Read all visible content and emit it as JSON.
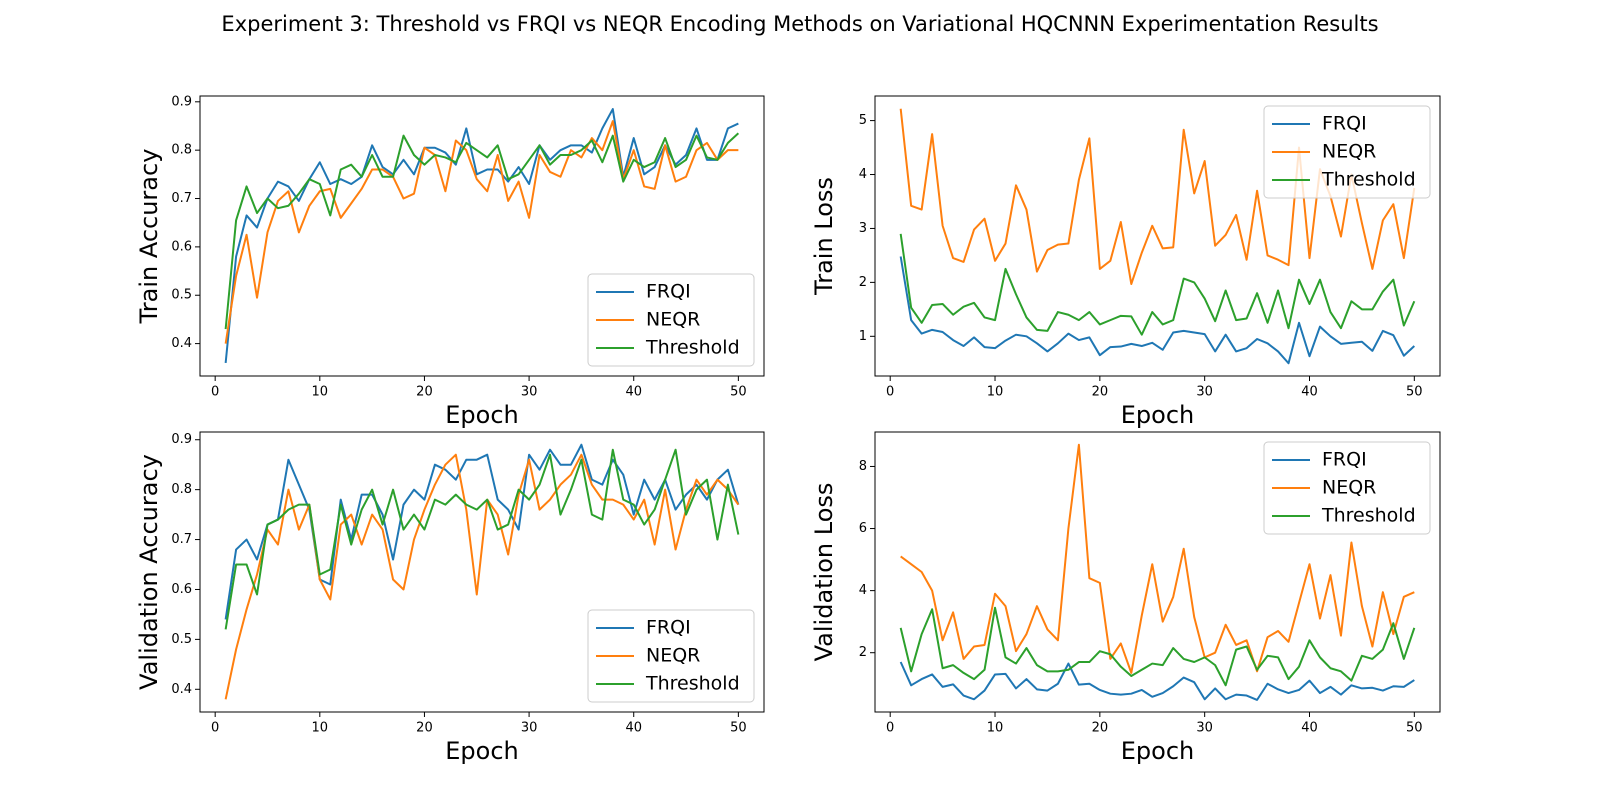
{
  "title": "Experiment 3: Threshold vs FRQI vs NEQR Encoding Methods on Variational HQCNNN Experimentation Results",
  "chart_data": [
    {
      "type": "line",
      "xlabel": "Epoch",
      "ylabel": "Train Accuracy",
      "legend": "lower right",
      "x": [
        1,
        2,
        3,
        4,
        5,
        6,
        7,
        8,
        9,
        10,
        11,
        12,
        13,
        14,
        15,
        16,
        17,
        18,
        19,
        20,
        21,
        22,
        23,
        24,
        25,
        26,
        27,
        28,
        29,
        30,
        31,
        32,
        33,
        34,
        35,
        36,
        37,
        38,
        39,
        40,
        41,
        42,
        43,
        44,
        45,
        46,
        47,
        48,
        49,
        50
      ],
      "xlim": [
        -1.45,
        52.45
      ],
      "xticks": [
        0,
        10,
        20,
        30,
        40,
        50
      ],
      "ylim": [
        0.333,
        0.912
      ],
      "yticks": [
        0.4,
        0.5,
        0.6,
        0.7,
        0.8,
        0.9
      ],
      "series": [
        {
          "name": "FRQI",
          "color": "#1f77b4",
          "values": [
            0.36,
            0.58,
            0.665,
            0.64,
            0.7,
            0.735,
            0.725,
            0.695,
            0.74,
            0.775,
            0.73,
            0.74,
            0.73,
            0.745,
            0.81,
            0.765,
            0.75,
            0.78,
            0.75,
            0.805,
            0.805,
            0.795,
            0.77,
            0.845,
            0.75,
            0.76,
            0.76,
            0.735,
            0.765,
            0.73,
            0.81,
            0.78,
            0.8,
            0.81,
            0.81,
            0.795,
            0.845,
            0.885,
            0.745,
            0.825,
            0.75,
            0.765,
            0.81,
            0.77,
            0.79,
            0.845,
            0.78,
            0.78,
            0.845,
            0.855
          ]
        },
        {
          "name": "NEQR",
          "color": "#ff7f0e",
          "values": [
            0.4,
            0.54,
            0.625,
            0.495,
            0.63,
            0.695,
            0.715,
            0.63,
            0.685,
            0.715,
            0.72,
            0.66,
            0.69,
            0.72,
            0.76,
            0.76,
            0.745,
            0.7,
            0.71,
            0.805,
            0.79,
            0.715,
            0.82,
            0.8,
            0.74,
            0.715,
            0.79,
            0.695,
            0.735,
            0.66,
            0.79,
            0.755,
            0.745,
            0.8,
            0.785,
            0.825,
            0.8,
            0.86,
            0.74,
            0.8,
            0.725,
            0.72,
            0.81,
            0.735,
            0.745,
            0.8,
            0.815,
            0.78,
            0.8,
            0.8
          ]
        },
        {
          "name": "Threshold",
          "color": "#2ca02c",
          "values": [
            0.43,
            0.655,
            0.725,
            0.67,
            0.7,
            0.68,
            0.685,
            0.71,
            0.74,
            0.73,
            0.665,
            0.76,
            0.77,
            0.745,
            0.79,
            0.745,
            0.745,
            0.83,
            0.79,
            0.77,
            0.79,
            0.785,
            0.775,
            0.815,
            0.8,
            0.785,
            0.81,
            0.74,
            0.75,
            0.78,
            0.81,
            0.77,
            0.79,
            0.79,
            0.8,
            0.82,
            0.775,
            0.83,
            0.735,
            0.78,
            0.765,
            0.775,
            0.825,
            0.765,
            0.78,
            0.83,
            0.785,
            0.78,
            0.815,
            0.835
          ]
        }
      ]
    },
    {
      "type": "line",
      "xlabel": "Epoch",
      "ylabel": "Train Loss",
      "legend": "upper right",
      "x": [
        1,
        2,
        3,
        4,
        5,
        6,
        7,
        8,
        9,
        10,
        11,
        12,
        13,
        14,
        15,
        16,
        17,
        18,
        19,
        20,
        21,
        22,
        23,
        24,
        25,
        26,
        27,
        28,
        29,
        30,
        31,
        32,
        33,
        34,
        35,
        36,
        37,
        38,
        39,
        40,
        41,
        42,
        43,
        44,
        45,
        46,
        47,
        48,
        49,
        50
      ],
      "xlim": [
        -1.45,
        52.45
      ],
      "xticks": [
        0,
        10,
        20,
        30,
        40,
        50
      ],
      "ylim": [
        0.264,
        5.456
      ],
      "yticks": [
        1,
        2,
        3,
        4,
        5
      ],
      "series": [
        {
          "name": "FRQI",
          "color": "#1f77b4",
          "values": [
            2.48,
            1.3,
            1.05,
            1.12,
            1.08,
            0.93,
            0.82,
            0.98,
            0.8,
            0.78,
            0.92,
            1.03,
            1.0,
            0.87,
            0.72,
            0.87,
            1.05,
            0.93,
            0.98,
            0.65,
            0.8,
            0.81,
            0.86,
            0.82,
            0.88,
            0.75,
            1.07,
            1.1,
            1.07,
            1.04,
            0.72,
            1.03,
            0.72,
            0.78,
            0.95,
            0.87,
            0.72,
            0.5,
            1.25,
            0.63,
            1.18,
            1.0,
            0.86,
            0.88,
            0.9,
            0.73,
            1.1,
            1.02,
            0.64,
            0.82
          ]
        },
        {
          "name": "NEQR",
          "color": "#ff7f0e",
          "values": [
            5.22,
            3.42,
            3.35,
            4.75,
            3.05,
            2.45,
            2.38,
            2.98,
            3.18,
            2.4,
            2.72,
            3.8,
            3.35,
            2.2,
            2.6,
            2.7,
            2.72,
            3.9,
            4.67,
            2.25,
            2.4,
            3.12,
            1.97,
            2.55,
            3.05,
            2.63,
            2.65,
            4.83,
            3.65,
            4.25,
            2.68,
            2.88,
            3.25,
            2.42,
            3.7,
            2.5,
            2.42,
            2.32,
            4.5,
            2.45,
            4.1,
            3.6,
            2.85,
            4.0,
            3.1,
            2.25,
            3.15,
            3.45,
            2.45,
            3.75
          ]
        },
        {
          "name": "Threshold",
          "color": "#2ca02c",
          "values": [
            2.9,
            1.53,
            1.25,
            1.58,
            1.6,
            1.4,
            1.55,
            1.62,
            1.35,
            1.3,
            2.25,
            1.78,
            1.35,
            1.12,
            1.1,
            1.45,
            1.4,
            1.3,
            1.45,
            1.22,
            1.3,
            1.38,
            1.37,
            1.03,
            1.45,
            1.22,
            1.3,
            2.07,
            2.0,
            1.7,
            1.28,
            1.85,
            1.3,
            1.33,
            1.8,
            1.25,
            1.85,
            1.15,
            2.05,
            1.6,
            2.05,
            1.45,
            1.15,
            1.65,
            1.5,
            1.5,
            1.83,
            2.05,
            1.2,
            1.65
          ]
        }
      ]
    },
    {
      "type": "line",
      "xlabel": "Epoch",
      "ylabel": "Validation Accuracy",
      "legend": "lower right",
      "x": [
        1,
        2,
        3,
        4,
        5,
        6,
        7,
        8,
        9,
        10,
        11,
        12,
        13,
        14,
        15,
        16,
        17,
        18,
        19,
        20,
        21,
        22,
        23,
        24,
        25,
        26,
        27,
        28,
        29,
        30,
        31,
        32,
        33,
        34,
        35,
        36,
        37,
        38,
        39,
        40,
        41,
        42,
        43,
        44,
        45,
        46,
        47,
        48,
        49,
        50
      ],
      "xlim": [
        -1.45,
        52.45
      ],
      "xticks": [
        0,
        10,
        20,
        30,
        40,
        50
      ],
      "ylim": [
        0.3545,
        0.9155
      ],
      "yticks": [
        0.4,
        0.5,
        0.6,
        0.7,
        0.8,
        0.9
      ],
      "series": [
        {
          "name": "FRQI",
          "color": "#1f77b4",
          "values": [
            0.54,
            0.68,
            0.7,
            0.66,
            0.73,
            0.74,
            0.86,
            0.81,
            0.76,
            0.62,
            0.61,
            0.78,
            0.7,
            0.79,
            0.79,
            0.75,
            0.66,
            0.77,
            0.8,
            0.78,
            0.85,
            0.84,
            0.82,
            0.86,
            0.86,
            0.87,
            0.78,
            0.76,
            0.72,
            0.87,
            0.84,
            0.88,
            0.85,
            0.85,
            0.89,
            0.82,
            0.81,
            0.86,
            0.83,
            0.75,
            0.82,
            0.78,
            0.82,
            0.76,
            0.79,
            0.81,
            0.78,
            0.82,
            0.84,
            0.77
          ]
        },
        {
          "name": "NEQR",
          "color": "#ff7f0e",
          "values": [
            0.38,
            0.48,
            0.56,
            0.63,
            0.72,
            0.69,
            0.8,
            0.72,
            0.77,
            0.62,
            0.58,
            0.73,
            0.75,
            0.69,
            0.75,
            0.72,
            0.62,
            0.6,
            0.7,
            0.76,
            0.81,
            0.85,
            0.87,
            0.76,
            0.59,
            0.78,
            0.75,
            0.67,
            0.79,
            0.86,
            0.76,
            0.78,
            0.81,
            0.83,
            0.87,
            0.81,
            0.78,
            0.78,
            0.77,
            0.74,
            0.78,
            0.69,
            0.8,
            0.68,
            0.76,
            0.82,
            0.79,
            0.82,
            0.8,
            0.77
          ]
        },
        {
          "name": "Threshold",
          "color": "#2ca02c",
          "values": [
            0.52,
            0.65,
            0.65,
            0.59,
            0.73,
            0.74,
            0.76,
            0.77,
            0.77,
            0.63,
            0.64,
            0.77,
            0.69,
            0.76,
            0.8,
            0.73,
            0.8,
            0.72,
            0.75,
            0.72,
            0.78,
            0.77,
            0.79,
            0.77,
            0.76,
            0.78,
            0.72,
            0.73,
            0.8,
            0.78,
            0.81,
            0.87,
            0.75,
            0.8,
            0.86,
            0.75,
            0.74,
            0.88,
            0.78,
            0.77,
            0.73,
            0.76,
            0.82,
            0.88,
            0.75,
            0.8,
            0.82,
            0.7,
            0.81,
            0.71
          ]
        }
      ]
    },
    {
      "type": "line",
      "xlabel": "Epoch",
      "ylabel": "Validation Loss",
      "legend": "upper right",
      "x": [
        1,
        2,
        3,
        4,
        5,
        6,
        7,
        8,
        9,
        10,
        11,
        12,
        13,
        14,
        15,
        16,
        17,
        18,
        19,
        20,
        21,
        22,
        23,
        24,
        25,
        26,
        27,
        28,
        29,
        30,
        31,
        32,
        33,
        34,
        35,
        36,
        37,
        38,
        39,
        40,
        41,
        42,
        43,
        44,
        45,
        46,
        47,
        48,
        49,
        50
      ],
      "xlim": [
        -1.45,
        52.45
      ],
      "xticks": [
        0,
        10,
        20,
        30,
        40,
        50
      ],
      "ylim": [
        0.09,
        9.11
      ],
      "yticks": [
        2,
        4,
        6,
        8
      ],
      "series": [
        {
          "name": "FRQI",
          "color": "#1f77b4",
          "values": [
            1.7,
            0.95,
            1.15,
            1.3,
            0.9,
            0.98,
            0.62,
            0.5,
            0.78,
            1.3,
            1.32,
            0.85,
            1.15,
            0.82,
            0.78,
            1.0,
            1.65,
            0.97,
            1.0,
            0.8,
            0.68,
            0.65,
            0.68,
            0.8,
            0.58,
            0.7,
            0.92,
            1.2,
            1.05,
            0.5,
            0.85,
            0.5,
            0.65,
            0.62,
            0.48,
            1.0,
            0.82,
            0.7,
            0.8,
            1.1,
            0.7,
            0.9,
            0.65,
            0.95,
            0.85,
            0.87,
            0.78,
            0.92,
            0.9,
            1.12
          ]
        },
        {
          "name": "NEQR",
          "color": "#ff7f0e",
          "values": [
            5.1,
            4.85,
            4.6,
            4.0,
            2.4,
            3.3,
            1.8,
            2.2,
            2.25,
            3.9,
            3.5,
            2.05,
            2.6,
            3.5,
            2.75,
            2.4,
            6.0,
            8.7,
            4.4,
            4.25,
            1.8,
            2.3,
            1.35,
            3.2,
            4.85,
            3.0,
            3.8,
            5.35,
            3.15,
            1.85,
            2.0,
            2.9,
            2.25,
            2.4,
            1.4,
            2.5,
            2.7,
            2.35,
            3.6,
            4.85,
            3.1,
            4.5,
            2.55,
            5.55,
            3.5,
            2.2,
            3.95,
            2.6,
            3.8,
            3.95
          ]
        },
        {
          "name": "Threshold",
          "color": "#2ca02c",
          "values": [
            2.8,
            1.4,
            2.6,
            3.4,
            1.5,
            1.6,
            1.35,
            1.15,
            1.45,
            3.45,
            1.85,
            1.65,
            2.15,
            1.6,
            1.4,
            1.4,
            1.45,
            1.7,
            1.7,
            2.05,
            1.95,
            1.55,
            1.25,
            1.45,
            1.65,
            1.6,
            2.15,
            1.8,
            1.7,
            1.85,
            1.6,
            0.95,
            2.1,
            2.2,
            1.45,
            1.9,
            1.85,
            1.15,
            1.55,
            2.4,
            1.85,
            1.5,
            1.4,
            1.1,
            1.9,
            1.8,
            2.1,
            2.95,
            1.8,
            2.8
          ]
        }
      ]
    }
  ]
}
